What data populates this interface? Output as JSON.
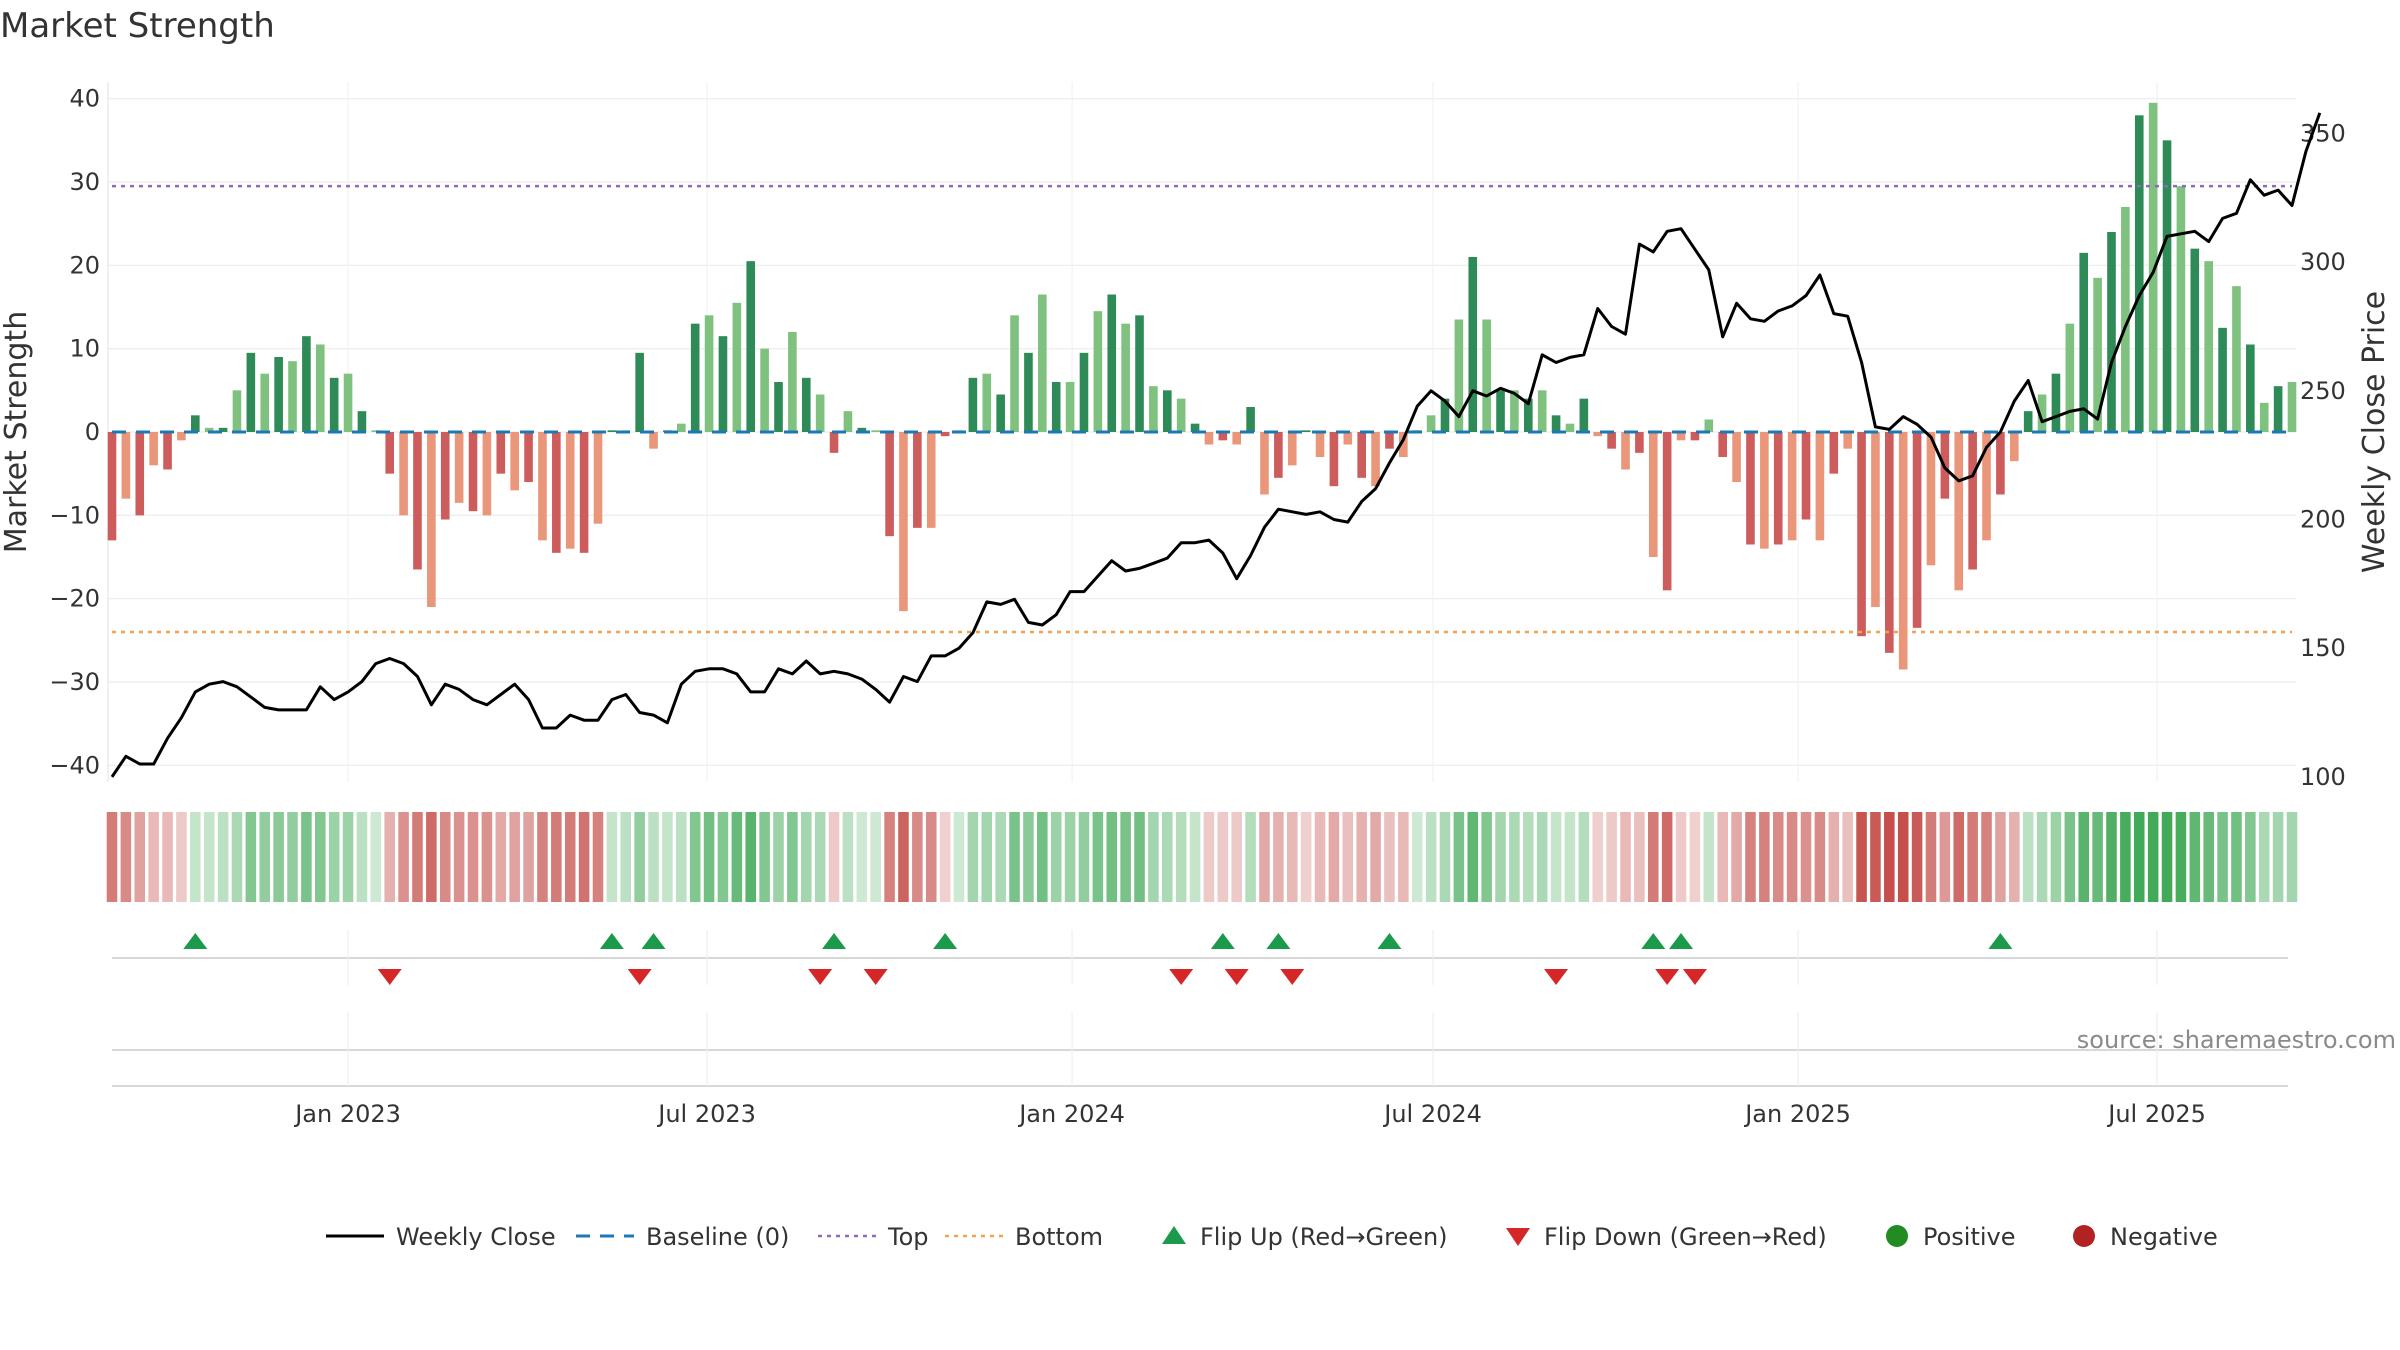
{
  "title": "Market Strength",
  "source": "source: sharemaestro.com",
  "colors": {
    "pos_dark": "#2e8b57",
    "pos_light": "#7fc17f",
    "neg_dark": "#cd5c5c",
    "neg_light": "#e9967a",
    "close": "#000000",
    "baseline": "#1f77b4",
    "top": "#9467bd",
    "bottom": "#f0a050",
    "flip_up": "#1a9a4a",
    "flip_down": "#d62728",
    "positive": "#228b22",
    "negative": "#b22222"
  },
  "chart_data": {
    "type": "bar+line",
    "x_start": "2022-09-04",
    "week_step_days": 7,
    "x_ticks": [
      "Jan 2023",
      "Jul 2023",
      "Jan 2024",
      "Jul 2024",
      "Jan 2025",
      "Jul 2025"
    ],
    "x_tick_dates": [
      "2023-01-01",
      "2023-07-01",
      "2024-01-01",
      "2024-07-01",
      "2025-01-01",
      "2025-07-01"
    ],
    "y_left": {
      "label": "Market Strength",
      "range": [
        -42,
        42
      ],
      "ticks": [
        40,
        30,
        20,
        10,
        0,
        -10,
        -20,
        -30,
        -40
      ]
    },
    "y_right": {
      "label": "Weekly Close Price",
      "range": [
        98,
        370
      ],
      "ticks": [
        350,
        300,
        250,
        200,
        150,
        100
      ]
    },
    "top_line": 29.5,
    "bottom_line": -24,
    "strength": [
      -13,
      -8,
      -10,
      -4,
      -4.5,
      -1,
      2,
      0.5,
      0.5,
      5,
      9.5,
      7,
      9,
      8.5,
      11.5,
      10.5,
      6.5,
      7,
      2.5,
      0.2,
      -5,
      -10,
      -16.5,
      -21,
      -10.5,
      -8.5,
      -9.5,
      -10,
      -5,
      -7,
      -6,
      -13,
      -14.5,
      -14,
      -14.5,
      -11,
      0.2,
      0.2,
      9.5,
      -2,
      0.2,
      1,
      13,
      14,
      11.5,
      15.5,
      20.5,
      10,
      6,
      12,
      6.5,
      4.5,
      -2.5,
      2.5,
      0.5,
      0.2,
      -12.5,
      -21.5,
      -11.5,
      -11.5,
      -0.5,
      0.2,
      6.5,
      7,
      4.5,
      14,
      9.5,
      16.5,
      6,
      6,
      9.5,
      14.5,
      16.5,
      13,
      14,
      5.5,
      5,
      4,
      1,
      -1.5,
      -1,
      -1.5,
      3,
      -7.5,
      -5.5,
      -4,
      0.2,
      -3,
      -6.5,
      -1.5,
      -5.5,
      -6.5,
      -2,
      -3,
      0.2,
      2,
      4,
      13.5,
      21,
      13.5,
      5,
      5,
      4,
      5,
      2,
      1,
      4,
      -0.5,
      -2,
      -4.5,
      -2.5,
      -15,
      -19,
      -1,
      -1,
      1.5,
      -3,
      -6,
      -13.5,
      -14,
      -13.5,
      -13,
      -10.5,
      -13,
      -5,
      -2,
      -24.5,
      -21,
      -26.5,
      -28.5,
      -23.5,
      -16,
      -8,
      -19,
      -16.5,
      -13,
      -7.5,
      -3.5,
      2.5,
      4.5,
      7,
      13,
      21.5,
      18.5,
      24,
      27,
      38,
      39.5,
      35,
      29.5,
      22,
      20.5,
      12.5,
      17.5,
      10.5,
      3.5,
      5.5,
      6
    ],
    "close": [
      100,
      108,
      105,
      105,
      115,
      123,
      133,
      136,
      137,
      135,
      131,
      127,
      126,
      126,
      126,
      135,
      130,
      133,
      137,
      144,
      146,
      144,
      139,
      128,
      136,
      134,
      130,
      128,
      132,
      136,
      130,
      119,
      119,
      124,
      122,
      122,
      130,
      132,
      125,
      124,
      121,
      136,
      141,
      142,
      142,
      140,
      133,
      133,
      142,
      140,
      145,
      140,
      141,
      140,
      138,
      134,
      129,
      139,
      137,
      147,
      147,
      150,
      156,
      168,
      167,
      169,
      160,
      159,
      163,
      172,
      172,
      178,
      184,
      180,
      181,
      183,
      185,
      191,
      191,
      192,
      187,
      177,
      186,
      197,
      204,
      203,
      202,
      203,
      200,
      199,
      207,
      212,
      222,
      231,
      244,
      250,
      246,
      240,
      250,
      248,
      251,
      249,
      245,
      264,
      261,
      263,
      264,
      282,
      275,
      272,
      307,
      304,
      312,
      313,
      305,
      297,
      271,
      284,
      278,
      277,
      281,
      283,
      287,
      295,
      280,
      279,
      261,
      236,
      235,
      240,
      237,
      232,
      220,
      215,
      217,
      228,
      234,
      246,
      254,
      238,
      240,
      242,
      243,
      239,
      261,
      275,
      287,
      296,
      310,
      311,
      312,
      308,
      317,
      319,
      332,
      326,
      328,
      322,
      343,
      358
    ]
  },
  "strength_band": [
    -12,
    -10,
    -7,
    -4,
    -4,
    -2,
    2,
    2,
    3,
    5,
    10,
    8,
    9,
    8,
    11,
    10,
    7,
    7,
    3,
    1,
    -5,
    -9,
    -12,
    -14,
    -10,
    -9,
    -9,
    -9,
    -6,
    -7,
    -7,
    -11,
    -12,
    -12,
    -13,
    -11,
    2,
    3,
    8,
    3,
    2,
    3,
    10,
    12,
    10,
    13,
    15,
    10,
    7,
    10,
    6,
    5,
    -2,
    3,
    1,
    1,
    -11,
    -15,
    -10,
    -10,
    -1,
    1,
    6,
    6,
    5,
    11,
    9,
    12,
    7,
    7,
    8,
    11,
    12,
    11,
    12,
    6,
    5,
    4,
    2,
    -2,
    -2,
    -2,
    4,
    -6,
    -5,
    -4,
    -1,
    -4,
    -6,
    -3,
    -5,
    -6,
    -3,
    -4,
    1,
    3,
    5,
    11,
    14,
    10,
    6,
    5,
    4,
    5,
    2,
    2,
    4,
    -1,
    -2,
    -4,
    -3,
    -12,
    -14,
    -2,
    -1,
    2,
    -4,
    -6,
    -11,
    -11,
    -10,
    -10,
    -9,
    -10,
    -5,
    -3,
    -17,
    -16,
    -18,
    -19,
    -16,
    -12,
    -8,
    -14,
    -12,
    -11,
    -7,
    -5,
    3,
    5,
    7,
    11,
    15,
    13,
    16,
    17,
    20,
    22,
    20,
    17,
    14,
    13,
    11,
    12,
    10,
    5,
    6,
    6
  ],
  "flips_up": [
    6,
    36,
    39,
    52,
    60,
    80,
    84,
    92,
    111,
    113,
    136
  ],
  "flips_down": [
    20,
    38,
    51,
    55,
    77,
    81,
    85,
    104,
    112,
    114
  ],
  "legend": [
    {
      "label": "Weekly Close",
      "kind": "line"
    },
    {
      "label": "Baseline (0)",
      "kind": "dash"
    },
    {
      "label": "Top",
      "kind": "dot-purple"
    },
    {
      "label": "Bottom",
      "kind": "dot-orange"
    },
    {
      "label": "Flip Up (Red→Green)",
      "kind": "tri-up"
    },
    {
      "label": "Flip Down (Green→Red)",
      "kind": "tri-down"
    },
    {
      "label": "Positive",
      "kind": "circle-green"
    },
    {
      "label": "Negative",
      "kind": "circle-red"
    }
  ]
}
